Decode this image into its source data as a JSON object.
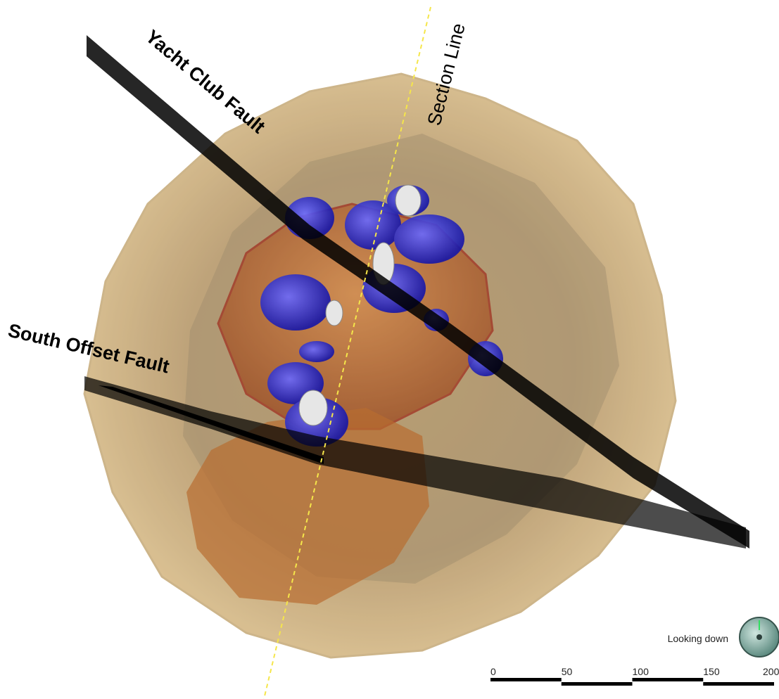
{
  "labels": {
    "yacht_club_fault": "Yacht Club Fault",
    "section_line": "Section Line",
    "south_offset_fault": "South Offset Fault"
  },
  "view": {
    "orientation": "Looking down"
  },
  "scale_bar": {
    "ticks": [
      0,
      50,
      100,
      150,
      200
    ]
  }
}
